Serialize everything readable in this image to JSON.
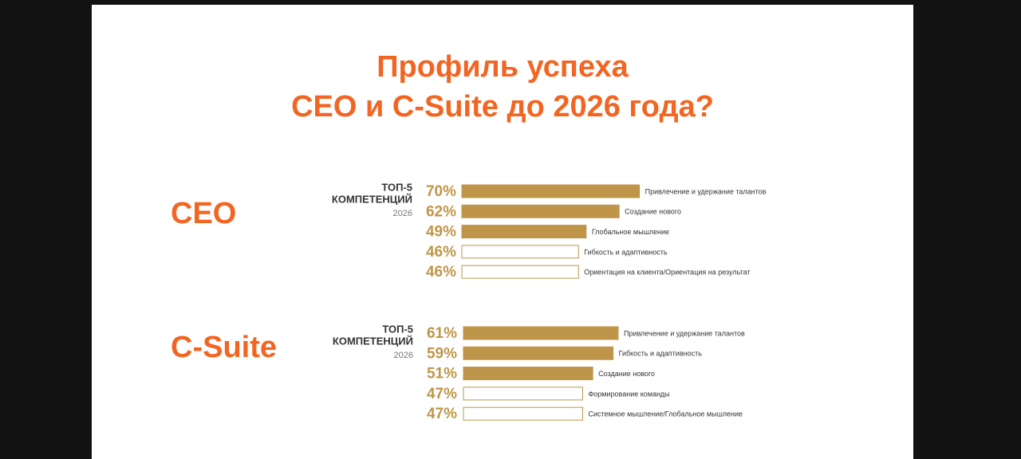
{
  "title": [
    "Профиль успеха",
    "CEO и C-Suite до 2026 года?"
  ],
  "chart_data": [
    {
      "type": "bar",
      "orientation": "horizontal",
      "title": "CEO",
      "subtitle": [
        "ТОП-5",
        "КОМПЕТЕНЦИЙ"
      ],
      "note": "2026",
      "categories": [
        "Привлечение и удержание талантов",
        "Создание нового",
        "Глобальное мышление",
        "Гибкость и адаптивность",
        "Ориентация на клиента/Ориентация на результат"
      ],
      "values": [
        70,
        62,
        49,
        46,
        46
      ],
      "value_labels": [
        "70%",
        "62%",
        "49%",
        "46%",
        "46%"
      ],
      "colors": [
        "#bf9649",
        "#bf9649",
        "#bf9649",
        "#ffffff",
        "#ffffff"
      ],
      "edgecolor": "#bf9649",
      "xlim": [
        0,
        100
      ]
    },
    {
      "type": "bar",
      "orientation": "horizontal",
      "title": "C-Suite",
      "subtitle": [
        "ТОП-5",
        "КОМПЕТЕНЦИЙ"
      ],
      "note": "2026",
      "categories": [
        "Привлечение и удержание талантов",
        "Гибкость и адаптивность",
        "Создание нового",
        "Формирование команды",
        "Системное мышление/Глобальное мышление"
      ],
      "values": [
        61,
        59,
        51,
        47,
        47
      ],
      "value_labels": [
        "61%",
        "59%",
        "51%",
        "47%",
        "47%"
      ],
      "colors": [
        "#bf9649",
        "#bf9649",
        "#bf9649",
        "#ffffff",
        "#ffffff"
      ],
      "edgecolor": "#bf9649",
      "xlim": [
        0,
        100
      ]
    }
  ]
}
